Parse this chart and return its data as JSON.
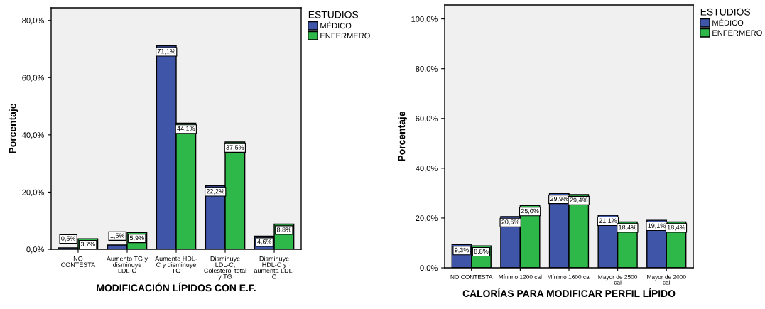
{
  "chart_data": [
    {
      "type": "bar",
      "xlabel": "MODIFICACIÓN LÍPIDOS CON E.F.",
      "ylabel": "Porcentaje",
      "legend_title": "ESTUDIOS",
      "legend": "right",
      "categories": [
        "NO\nCONTESTA",
        "Aumento TG y\ndisminuye\nLDL-C",
        "Aumento HDL-\nC y disminuye\nTG",
        "Disminuye\nLDL-C,\nColesterol total\ny TG",
        "Disminuye\nHDL-C y\naumenta LDL-\nC"
      ],
      "series": [
        {
          "name": "MÉDICO",
          "color": "#3f56a8",
          "values": [
            0.5,
            1.5,
            71.1,
            22.2,
            4.6
          ],
          "value_labels": [
            "0,5%",
            "1,5%",
            "71,1%",
            "22,2%",
            "4,6%"
          ]
        },
        {
          "name": "ENFERMERO",
          "color": "#2fb84a",
          "values": [
            3.7,
            5.9,
            44.1,
            37.5,
            8.8
          ],
          "value_labels": [
            "3,7%",
            "5,9%",
            "44,1%",
            "37,5%",
            "8,8%"
          ]
        }
      ],
      "ylim": [
        0,
        84.4
      ],
      "yticks": [
        {
          "value": 0,
          "label": "0,0%"
        },
        {
          "value": 20,
          "label": "20,0%"
        },
        {
          "value": 40,
          "label": "40,0%"
        },
        {
          "value": 60,
          "label": "60,0%"
        },
        {
          "value": 80,
          "label": "80,0%"
        }
      ],
      "grid": false
    },
    {
      "type": "bar",
      "xlabel": "CALORÍAS PARA MODIFICAR PERFIL LÍPIDO",
      "ylabel": "Porcentaje",
      "legend_title": "ESTUDIOS",
      "legend": "right",
      "categories": [
        "NO CONTESTA",
        "Mínimo 1200 cal",
        "Mínimo 1600 cal",
        "Mayor de 2500\ncal",
        "Mayor de 2000\ncal"
      ],
      "series": [
        {
          "name": "MÉDICO",
          "color": "#3f56a8",
          "values": [
            9.3,
            20.6,
            29.9,
            21.1,
            19.1
          ],
          "value_labels": [
            "9,3%",
            "20,6%",
            "29,9%",
            "21,1%",
            "19,1%"
          ]
        },
        {
          "name": "ENFERMERO",
          "color": "#2fb84a",
          "values": [
            8.8,
            25.0,
            29.4,
            18.4,
            18.4
          ],
          "value_labels": [
            "8,8%",
            "25,0%",
            "29,4%",
            "18,4%",
            "18,4%"
          ]
        }
      ],
      "ylim": [
        0,
        105.6
      ],
      "yticks": [
        {
          "value": 0,
          "label": "0,0%"
        },
        {
          "value": 20,
          "label": "20,0%"
        },
        {
          "value": 40,
          "label": "40,0%"
        },
        {
          "value": 60,
          "label": "60,0%"
        },
        {
          "value": 80,
          "label": "80,0%"
        },
        {
          "value": 100,
          "label": "100,0%"
        }
      ],
      "grid": false
    }
  ]
}
